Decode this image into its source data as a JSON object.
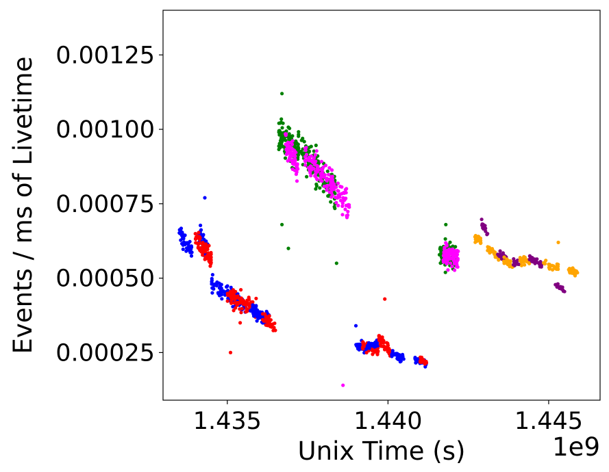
{
  "chart_data": {
    "type": "scatter",
    "xlabel": "Unix Time (s)",
    "ylabel": "Events / ms of Livetime",
    "x_offset_label": "1e9",
    "xlim": [
      1.433,
      1.4466
    ],
    "ylim": [
      9e-05,
      0.0014
    ],
    "x_ticks": [
      {
        "value": 1.435,
        "label": "1.435"
      },
      {
        "value": 1.44,
        "label": "1.440"
      },
      {
        "value": 1.445,
        "label": "1.445"
      }
    ],
    "y_ticks": [
      {
        "value": 0.00025,
        "label": "0.00025"
      },
      {
        "value": 0.0005,
        "label": "0.00050"
      },
      {
        "value": 0.00075,
        "label": "0.00075"
      },
      {
        "value": 0.001,
        "label": "0.00100"
      },
      {
        "value": 0.00125,
        "label": "0.00125"
      }
    ],
    "grid": false,
    "colors": {
      "blue": "#0000ff",
      "red": "#ff0000",
      "green": "#008000",
      "magenta": "#ff00ff",
      "orange": "#ffa500",
      "purple": "#800080"
    },
    "clusters": [
      {
        "color": "blue",
        "x0": 1.4335,
        "x1": 1.4339,
        "y0": 0.00065,
        "y1": 0.00059,
        "spread": 3.5e-05,
        "n": 45
      },
      {
        "color": "blue",
        "x0": 1.4341,
        "x1": 1.4344,
        "y0": 0.00065,
        "y1": 0.00058,
        "spread": 4e-05,
        "n": 45
      },
      {
        "color": "red",
        "x0": 1.434,
        "x1": 1.4345,
        "y0": 0.00063,
        "y1": 0.00056,
        "spread": 3.5e-05,
        "n": 75
      },
      {
        "color": "blue",
        "x0": 1.4345,
        "x1": 1.4356,
        "y0": 0.00048,
        "y1": 0.00041,
        "spread": 3e-05,
        "n": 90
      },
      {
        "color": "red",
        "x0": 1.435,
        "x1": 1.4359,
        "y0": 0.00044,
        "y1": 0.0004,
        "spread": 3e-05,
        "n": 100
      },
      {
        "color": "blue",
        "x0": 1.4357,
        "x1": 1.4363,
        "y0": 0.0004,
        "y1": 0.00036,
        "spread": 2.5e-05,
        "n": 70
      },
      {
        "color": "red",
        "x0": 1.4361,
        "x1": 1.4365,
        "y0": 0.00037,
        "y1": 0.00033,
        "spread": 2e-05,
        "n": 40
      },
      {
        "color": "green",
        "x0": 1.4366,
        "x1": 1.4372,
        "y0": 0.00099,
        "y1": 0.00092,
        "spread": 5.5e-05,
        "n": 110
      },
      {
        "color": "magenta",
        "x0": 1.4368,
        "x1": 1.4372,
        "y0": 0.00095,
        "y1": 0.00088,
        "spread": 4.5e-05,
        "n": 70
      },
      {
        "color": "green",
        "x0": 1.4372,
        "x1": 1.4384,
        "y0": 0.00095,
        "y1": 0.00078,
        "spread": 5.5e-05,
        "n": 140
      },
      {
        "color": "magenta",
        "x0": 1.4374,
        "x1": 1.4388,
        "y0": 0.00092,
        "y1": 0.00073,
        "spread": 5e-05,
        "n": 140
      },
      {
        "color": "blue",
        "x0": 1.439,
        "x1": 1.4393,
        "y0": 0.000275,
        "y1": 0.000265,
        "spread": 1.5e-05,
        "n": 50
      },
      {
        "color": "red",
        "x0": 1.4392,
        "x1": 1.4397,
        "y0": 0.000275,
        "y1": 0.000255,
        "spread": 1.5e-05,
        "n": 45
      },
      {
        "color": "blue",
        "x0": 1.4393,
        "x1": 1.4397,
        "y0": 0.00027,
        "y1": 0.00028,
        "spread": 1.5e-05,
        "n": 40
      },
      {
        "color": "red",
        "x0": 1.4397,
        "x1": 1.4401,
        "y0": 0.0003,
        "y1": 0.00025,
        "spread": 1.5e-05,
        "n": 45
      },
      {
        "color": "blue",
        "x0": 1.4401,
        "x1": 1.4405,
        "y0": 0.000245,
        "y1": 0.00023,
        "spread": 1.2e-05,
        "n": 40
      },
      {
        "color": "blue",
        "x0": 1.4408,
        "x1": 1.4412,
        "y0": 0.00023,
        "y1": 0.000215,
        "spread": 1e-05,
        "n": 40
      },
      {
        "color": "red",
        "x0": 1.441,
        "x1": 1.4412,
        "y0": 0.000225,
        "y1": 0.000215,
        "spread": 1e-05,
        "n": 20
      },
      {
        "color": "green",
        "x0": 1.4416,
        "x1": 1.4421,
        "y0": 0.00058,
        "y1": 0.00057,
        "spread": 4e-05,
        "n": 90
      },
      {
        "color": "magenta",
        "x0": 1.4417,
        "x1": 1.4422,
        "y0": 0.00058,
        "y1": 0.00057,
        "spread": 3.5e-05,
        "n": 90
      },
      {
        "color": "orange",
        "x0": 1.4427,
        "x1": 1.4429,
        "y0": 0.000635,
        "y1": 0.00063,
        "spread": 1.2e-05,
        "n": 25
      },
      {
        "color": "purple",
        "x0": 1.4429,
        "x1": 1.4431,
        "y0": 0.00069,
        "y1": 0.00065,
        "spread": 1.2e-05,
        "n": 15
      },
      {
        "color": "orange",
        "x0": 1.4431,
        "x1": 1.4435,
        "y0": 0.0006,
        "y1": 0.00057,
        "spread": 1.2e-05,
        "n": 30
      },
      {
        "color": "purple",
        "x0": 1.4434,
        "x1": 1.4437,
        "y0": 0.00058,
        "y1": 0.00056,
        "spread": 1.2e-05,
        "n": 25
      },
      {
        "color": "orange",
        "x0": 1.4436,
        "x1": 1.4439,
        "y0": 0.00056,
        "y1": 0.00054,
        "spread": 1.2e-05,
        "n": 25
      },
      {
        "color": "purple",
        "x0": 1.4439,
        "x1": 1.4441,
        "y0": 0.00055,
        "y1": 0.00055,
        "spread": 1.2e-05,
        "n": 15
      },
      {
        "color": "orange",
        "x0": 1.4441,
        "x1": 1.4444,
        "y0": 0.00056,
        "y1": 0.00056,
        "spread": 1.2e-05,
        "n": 25
      },
      {
        "color": "purple",
        "x0": 1.4444,
        "x1": 1.4448,
        "y0": 0.00057,
        "y1": 0.00054,
        "spread": 1.2e-05,
        "n": 30
      },
      {
        "color": "orange",
        "x0": 1.4448,
        "x1": 1.4453,
        "y0": 0.000545,
        "y1": 0.000535,
        "spread": 1.2e-05,
        "n": 25
      },
      {
        "color": "purple",
        "x0": 1.4452,
        "x1": 1.4455,
        "y0": 0.00048,
        "y1": 0.00046,
        "spread": 1e-05,
        "n": 15
      },
      {
        "color": "orange",
        "x0": 1.4456,
        "x1": 1.4459,
        "y0": 0.00053,
        "y1": 0.000515,
        "spread": 1e-05,
        "n": 25
      }
    ],
    "outliers": [
      {
        "x": 1.4367,
        "y": 0.00068,
        "color": "green"
      },
      {
        "x": 1.4369,
        "y": 0.0006,
        "color": "green"
      },
      {
        "x": 1.4351,
        "y": 0.00025,
        "color": "red"
      },
      {
        "x": 1.4354,
        "y": 0.00035,
        "color": "red"
      },
      {
        "x": 1.4386,
        "y": 0.00014,
        "color": "magenta"
      },
      {
        "x": 1.4399,
        "y": 0.00043,
        "color": "red"
      },
      {
        "x": 1.439,
        "y": 0.00034,
        "color": "blue"
      },
      {
        "x": 1.4343,
        "y": 0.00077,
        "color": "blue"
      },
      {
        "x": 1.4384,
        "y": 0.00055,
        "color": "green"
      },
      {
        "x": 1.4418,
        "y": 0.00068,
        "color": "green"
      },
      {
        "x": 1.4453,
        "y": 0.00062,
        "color": "orange"
      },
      {
        "x": 1.4367,
        "y": 0.00112,
        "color": "green"
      }
    ]
  }
}
